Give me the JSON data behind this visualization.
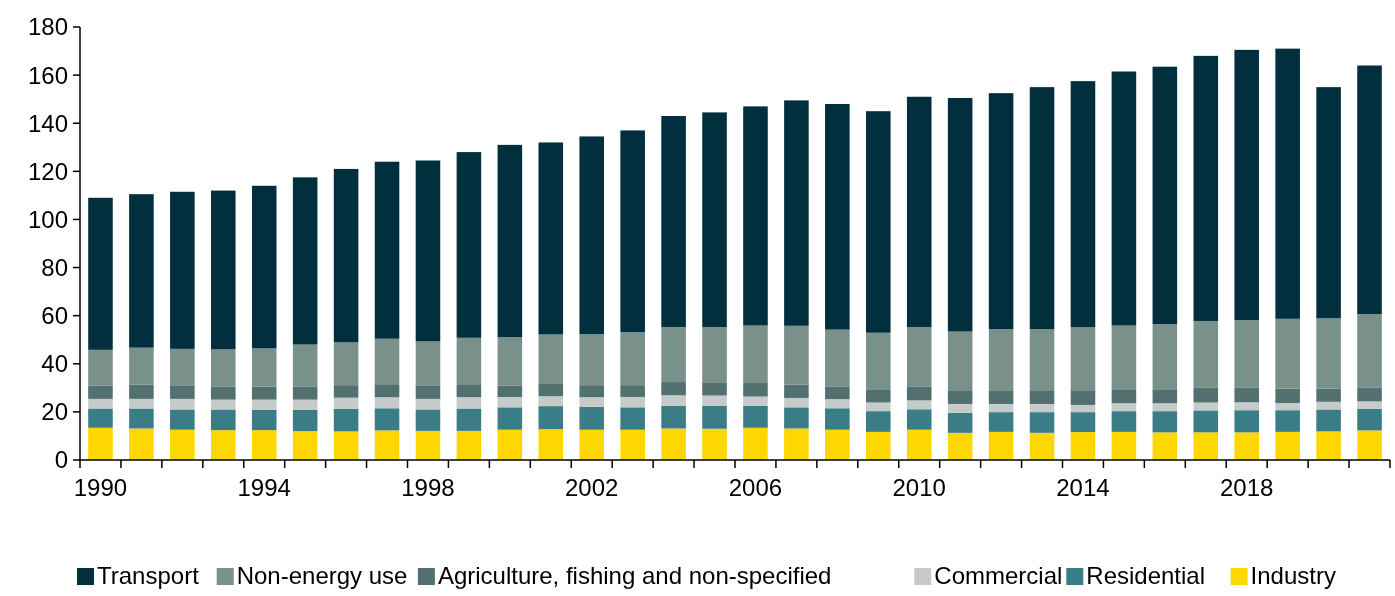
{
  "chart_data": {
    "type": "bar",
    "stacked": true,
    "categories": [
      "1990",
      null,
      null,
      null,
      "1994",
      null,
      null,
      null,
      "1998",
      null,
      null,
      null,
      "2002",
      null,
      null,
      null,
      "2006",
      null,
      null,
      null,
      "2010",
      null,
      null,
      null,
      "2014",
      null,
      null,
      null,
      "2018",
      null,
      null,
      null
    ],
    "series": [
      {
        "name": "Industry",
        "color": "#ffd700",
        "values": [
          13.4,
          13.1,
          12.6,
          12.4,
          12.4,
          12.0,
          11.9,
          12.3,
          12.1,
          12.1,
          12.6,
          12.8,
          12.6,
          12.6,
          13.1,
          13.0,
          13.4,
          13.1,
          12.6,
          11.7,
          12.6,
          11.3,
          11.7,
          11.3,
          11.6,
          11.7,
          11.5,
          11.5,
          11.5,
          11.7,
          11.9,
          12.3
        ]
      },
      {
        "name": "Residential",
        "color": "#3a7d87",
        "values": [
          8.0,
          8.3,
          8.4,
          8.6,
          8.4,
          8.8,
          9.4,
          9.2,
          8.9,
          9.3,
          9.3,
          9.6,
          9.5,
          9.3,
          9.5,
          9.5,
          9.1,
          8.8,
          8.9,
          8.6,
          8.5,
          8.3,
          8.2,
          8.6,
          8.3,
          8.6,
          8.8,
          9.1,
          9.2,
          9.0,
          9.1,
          9.0
        ]
      },
      {
        "name": "Commercial",
        "color": "#c5cbc8",
        "values": [
          4.0,
          4.0,
          4.4,
          4.1,
          4.3,
          4.3,
          4.6,
          4.6,
          4.4,
          4.7,
          4.3,
          4.1,
          4.0,
          4.3,
          4.3,
          4.3,
          3.9,
          3.9,
          3.8,
          3.6,
          3.7,
          3.7,
          3.4,
          3.4,
          3.0,
          3.3,
          3.3,
          3.3,
          3.3,
          3.0,
          3.2,
          3.1
        ]
      },
      {
        "name": "Agriculture, fishing and non-specified",
        "color": "#52706f",
        "values": [
          5.5,
          5.9,
          5.4,
          5.5,
          5.4,
          5.5,
          5.2,
          5.4,
          5.4,
          5.4,
          4.7,
          5.1,
          5.0,
          4.9,
          5.5,
          5.5,
          5.6,
          5.5,
          5.3,
          5.5,
          5.6,
          5.7,
          5.7,
          5.7,
          6.1,
          5.8,
          5.8,
          6.1,
          6.0,
          6.0,
          5.5,
          5.8
        ]
      },
      {
        "name": "Non-energy use",
        "color": "#79908b",
        "values": [
          14.9,
          15.4,
          15.4,
          15.4,
          15.9,
          17.4,
          17.8,
          18.9,
          18.5,
          19.3,
          20.2,
          20.6,
          21.2,
          22.0,
          22.9,
          23.0,
          23.9,
          24.5,
          23.6,
          23.5,
          24.9,
          24.4,
          25.4,
          25.4,
          26.2,
          26.5,
          27.1,
          27.8,
          28.2,
          29.0,
          29.2,
          30.5
        ]
      },
      {
        "name": "Transport",
        "color": "#012f3d",
        "values": [
          63.2,
          63.8,
          65.3,
          66.0,
          67.6,
          69.5,
          72.1,
          73.6,
          75.2,
          77.2,
          79.9,
          79.8,
          82.2,
          83.9,
          87.7,
          89.2,
          91.1,
          93.7,
          93.8,
          92.1,
          95.7,
          97.1,
          98.1,
          100.6,
          102.3,
          105.6,
          107.0,
          110.2,
          112.3,
          112.3,
          96.1,
          103.3
        ]
      }
    ],
    "ylim": [
      0,
      180
    ],
    "yticks": [
      0,
      20,
      40,
      60,
      80,
      100,
      120,
      140,
      160,
      180
    ],
    "grid": false,
    "legend": "bottom"
  }
}
